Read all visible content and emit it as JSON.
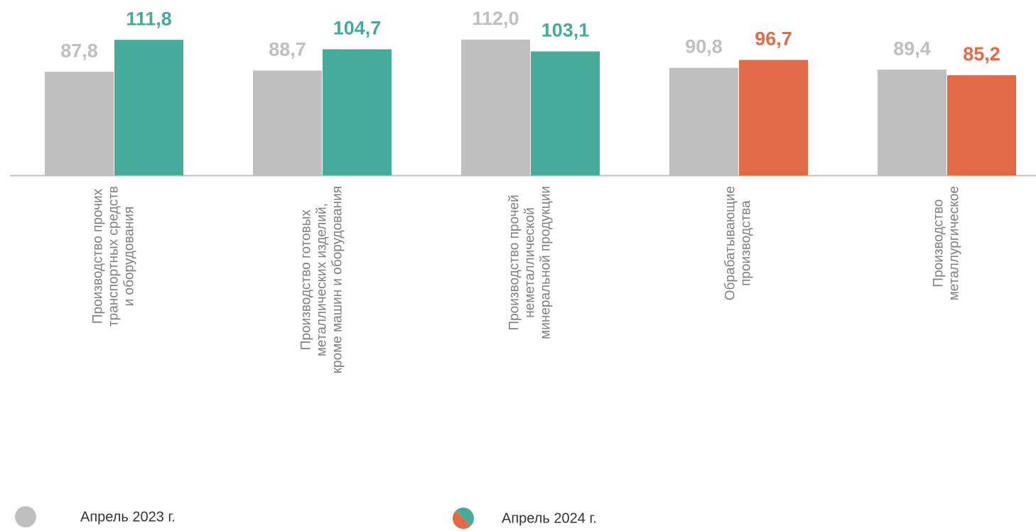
{
  "chart_data": {
    "type": "bar",
    "categories": [
      [
        "Производство прочих",
        "транспортных средств",
        "и оборудования"
      ],
      [
        "Производство готовых",
        "металлических изделий,",
        "кроме машин и оборудования"
      ],
      [
        "Производство прочей",
        "неметаллической",
        "минеральной продукции"
      ],
      [
        "Обрабатывающие",
        "производства"
      ],
      [
        "Производство",
        "металлургическое"
      ]
    ],
    "series": [
      {
        "name": "Апрель 2023 г.",
        "color": "#bfbfbf",
        "values": [
          87.8,
          88.7,
          112.0,
          90.8,
          89.4
        ],
        "value_labels": [
          "87,8",
          "88,7",
          "112,0",
          "90,8",
          "89,4"
        ]
      },
      {
        "name": "Апрель 2024 г.",
        "colors": [
          "#46ab98",
          "#46ab98",
          "#46ab98",
          "#e36a47",
          "#e36a47"
        ],
        "values": [
          111.8,
          104.7,
          103.1,
          96.7,
          85.2
        ],
        "value_labels": [
          "111,8",
          "104,7",
          "103,1",
          "96,7",
          "85,2"
        ]
      }
    ],
    "ylim": [
      10,
      130
    ]
  }
}
